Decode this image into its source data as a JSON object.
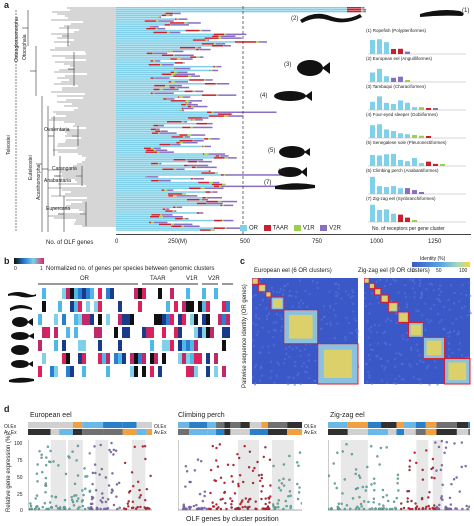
{
  "panel_a": {
    "label": "a",
    "clades": [
      "Osteoglossomorpha",
      "Elopomorpha",
      "Otocephala",
      "Euteleostei",
      "Acanthomorpha",
      "Ovalentaria",
      "Carangaria",
      "Anabantaria",
      "Eupercaria"
    ],
    "teleostei": "Teleostei",
    "xlabel_left": "No. of OLF genes",
    "xticks": [
      "0",
      "250(M)",
      "500",
      "750",
      "1000",
      "1250"
    ],
    "legend": [
      {
        "label": "OR",
        "color": "#7fd0e8"
      },
      {
        "label": "TAAR",
        "color": "#c8202f"
      },
      {
        "label": "V1R",
        "color": "#9ad04a"
      },
      {
        "label": "V2R",
        "color": "#8a6fc0"
      }
    ],
    "fish_labels": [
      "(1)",
      "(2)",
      "(3)",
      "(4)",
      "(5)",
      "(6)",
      "(7)"
    ],
    "mini_titles": [
      "(1) Ropefish (Polypteriformes)",
      "(2) European eel (Anguilliformes)",
      "(3) Tambaqui (Characiformes)",
      "(4) Four-eyed sleeper (Gobiiformes)",
      "(5) Senegalese sole (Pleuronectiformes)",
      "(6) Climbing perch (Anabantiformes)",
      "(7) Zig-zag eel (Synbranchiformes)"
    ],
    "mini_xlabel": "No. of receptors per gene cluster",
    "dashed_mark": "500"
  },
  "panel_b": {
    "label": "b",
    "title": "Normalized no. of genes per species between genomic clusters",
    "scale_min": "0",
    "scale_max": "1",
    "groups": [
      "OR",
      "TAAR",
      "V1R",
      "V2R"
    ]
  },
  "panel_c": {
    "label": "c",
    "ylabel": "Pairwise sequence identity (OR genes)",
    "maps": [
      {
        "title": "European eel (6 OR clusters)"
      },
      {
        "title": "Zig-zag eel (9 OR clusters)"
      }
    ],
    "legend_title": "Identity (%)",
    "legend_ticks": [
      "0",
      "50",
      "100"
    ]
  },
  "panel_d": {
    "label": "d",
    "ylabel": "Relative gene expression (%)",
    "xlabel": "OLF genes by cluster position",
    "row_labels": [
      "Ol.Ex",
      "Av.Ex"
    ],
    "yticks": [
      "100",
      "75",
      "50",
      "25",
      "0"
    ],
    "tracks": [
      {
        "title": "European eel"
      },
      {
        "title": "Climbing perch"
      },
      {
        "title": "Zig-zag eel"
      }
    ]
  },
  "colors": {
    "or": "#7fd0e8",
    "taar": "#c8202f",
    "v1r": "#9ad04a",
    "v2r": "#8a6fc0",
    "heat_low": "#3a58c8",
    "heat_high": "#f5d642"
  }
}
